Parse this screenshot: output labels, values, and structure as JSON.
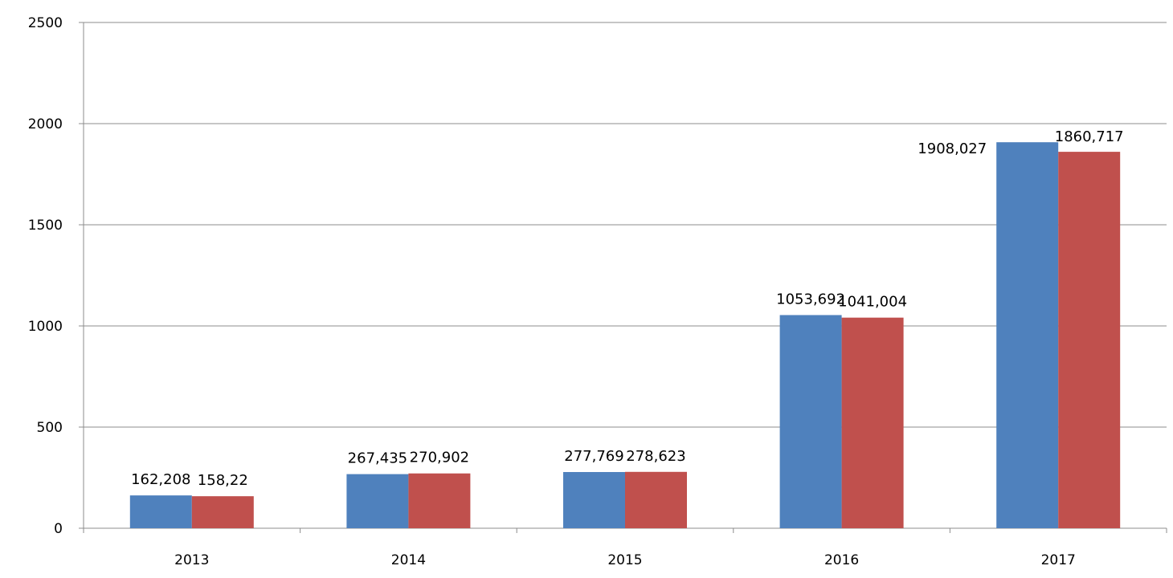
{
  "chart_data": {
    "type": "bar",
    "categories": [
      "2013",
      "2014",
      "2015",
      "2016",
      "2017"
    ],
    "series": [
      {
        "values": [
          162.208,
          267.435,
          277.769,
          1053.692,
          1908.027
        ],
        "labels": [
          "162,208",
          "267,435",
          "277,769",
          "1053,692",
          "1908,027"
        ],
        "color": "#4F81BD"
      },
      {
        "values": [
          158.22,
          270.902,
          278.623,
          1041.004,
          1860.717
        ],
        "labels": [
          "158,22",
          "270,902",
          "278,623",
          "1041,004",
          "1860,717"
        ],
        "color": "#C0504D"
      }
    ],
    "y_ticks": [
      "0",
      "500",
      "1000",
      "1500",
      "2000",
      "2500"
    ],
    "ylim": [
      0,
      2500
    ],
    "grid": true,
    "legend": "none",
    "title": "",
    "xlabel": "",
    "ylabel": ""
  }
}
